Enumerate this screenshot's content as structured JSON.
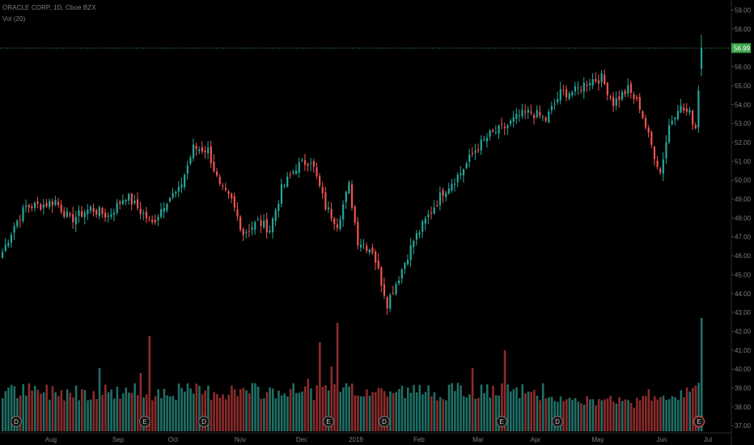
{
  "header": {
    "title": "ORACLE CORP, 1D, Cboe BZX",
    "volume_label": "Vol (20)"
  },
  "colors": {
    "up": "#26a69a",
    "down": "#ef5350",
    "up_vol": "#1f6f66",
    "down_vol": "#8c2b2b",
    "last_price_line": "#3aa648",
    "background": "#000000"
  },
  "chart_data": {
    "type": "candlestick",
    "symbol": "ORACLE CORP",
    "interval": "1D",
    "exchange": "Cboe BZX",
    "ylim": [
      36.5,
      59.5
    ],
    "y_ticks": [
      "59.00",
      "58.00",
      "57.00",
      "56.00",
      "55.00",
      "54.00",
      "53.00",
      "52.00",
      "51.00",
      "50.00",
      "49.00",
      "48.00",
      "47.00",
      "46.00",
      "45.00",
      "44.00",
      "43.00",
      "42.00",
      "41.00",
      "40.00",
      "39.00",
      "38.00",
      "37.00"
    ],
    "last_price": "56.99",
    "x_ticks": [
      "Aug",
      "Sep",
      "Oct",
      "Nov",
      "Dec",
      "2019",
      "Feb",
      "Mar",
      "Apr",
      "May",
      "Jun",
      "Jul"
    ],
    "price_anchors": [
      [
        0,
        46.2
      ],
      [
        4,
        47.6
      ],
      [
        8,
        48.6
      ],
      [
        14,
        48.7
      ],
      [
        18,
        48.9
      ],
      [
        23,
        47.9
      ],
      [
        30,
        48.5
      ],
      [
        36,
        48.1
      ],
      [
        42,
        49.2
      ],
      [
        48,
        48.2
      ],
      [
        51,
        47.7
      ],
      [
        56,
        49.0
      ],
      [
        60,
        49.4
      ],
      [
        65,
        51.7
      ],
      [
        70,
        51.6
      ],
      [
        74,
        49.6
      ],
      [
        78,
        48.9
      ],
      [
        82,
        47.2
      ],
      [
        87,
        47.8
      ],
      [
        91,
        47.4
      ],
      [
        95,
        49.5
      ],
      [
        100,
        50.7
      ],
      [
        105,
        51.1
      ],
      [
        110,
        48.6
      ],
      [
        114,
        47.7
      ],
      [
        118,
        49.7
      ],
      [
        121,
        46.8
      ],
      [
        126,
        46.3
      ],
      [
        131,
        43.5
      ],
      [
        135,
        44.9
      ],
      [
        140,
        46.8
      ],
      [
        145,
        48.1
      ],
      [
        150,
        49.4
      ],
      [
        156,
        50.4
      ],
      [
        161,
        51.6
      ],
      [
        166,
        52.4
      ],
      [
        171,
        52.8
      ],
      [
        176,
        53.4
      ],
      [
        180,
        53.6
      ],
      [
        185,
        53.2
      ],
      [
        190,
        54.6
      ],
      [
        195,
        54.7
      ],
      [
        200,
        55.3
      ],
      [
        204,
        55.4
      ],
      [
        208,
        54.1
      ],
      [
        213,
        54.8
      ],
      [
        217,
        53.9
      ],
      [
        220,
        52.3
      ],
      [
        224,
        50.4
      ],
      [
        227,
        52.9
      ],
      [
        230,
        53.9
      ],
      [
        234,
        53.5
      ],
      [
        236,
        52.8
      ],
      [
        238,
        56.99
      ]
    ],
    "volume_label": "Vol (20)",
    "event_markers": [
      "D",
      "E",
      "D",
      "E",
      "D",
      "E",
      "D",
      "E"
    ]
  }
}
